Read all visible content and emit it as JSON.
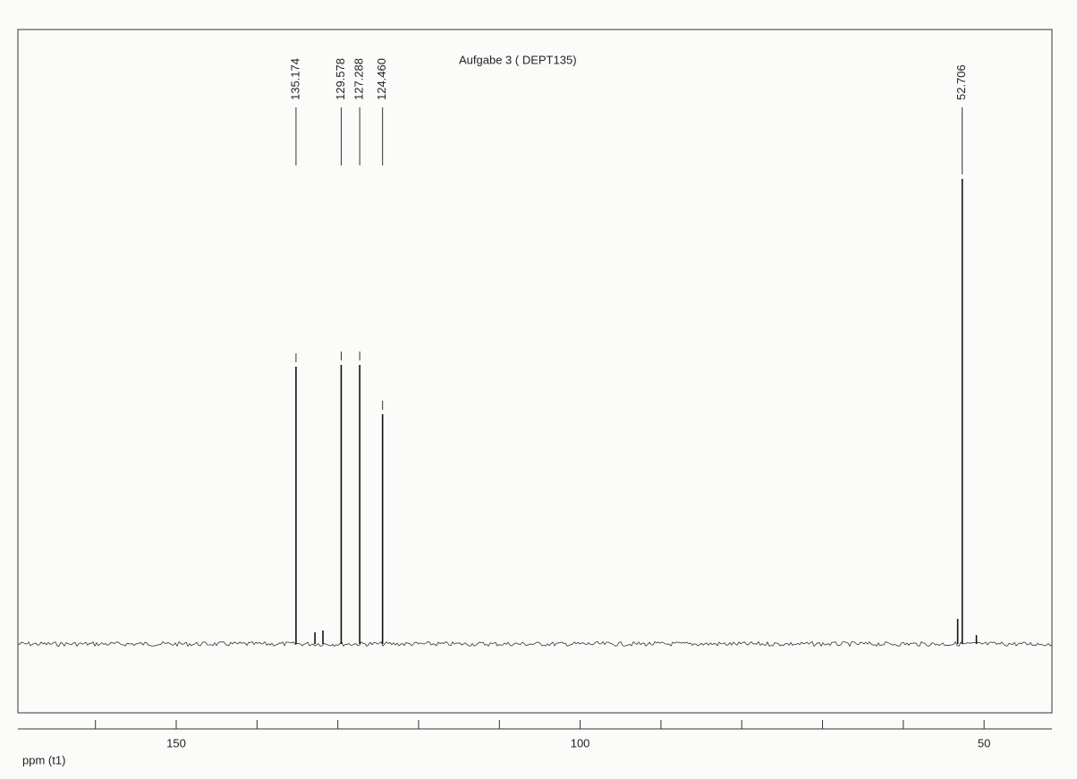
{
  "chart_data": {
    "type": "spectrum",
    "title": "Aufgabe 3  ( DEPT135)",
    "x_label": "ppm (t1)",
    "x": [
      135.174,
      132.83,
      131.84,
      129.578,
      127.288,
      124.46,
      53.27,
      52.706,
      50.95
    ],
    "values": [
      0.596,
      0.025,
      0.029,
      0.6,
      0.6,
      0.494,
      0.054,
      1.0,
      0.019
    ],
    "peak_labels": [
      "135.174",
      null,
      null,
      "129.578",
      "127.288",
      "124.460",
      null,
      "52.706",
      null
    ],
    "color": "#111111",
    "xlim": [
      169.6,
      41.6
    ],
    "xticks": [
      150,
      100,
      50
    ],
    "xminor_ticks": [
      160,
      140,
      130,
      120,
      110,
      90,
      80,
      70,
      60
    ],
    "ylim": [
      -0.148,
      1.321
    ]
  }
}
